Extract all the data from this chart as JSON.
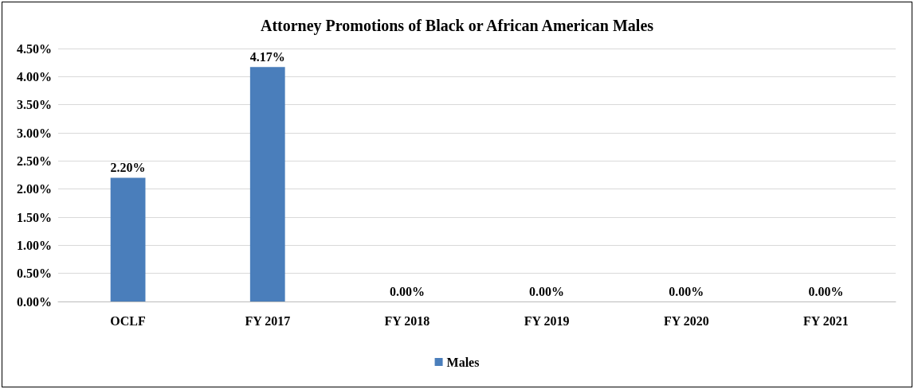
{
  "chart_data": {
    "type": "bar",
    "title": "Attorney Promotions of Black or African American Males",
    "categories": [
      "OCLF",
      "FY 2017",
      "FY 2018",
      "FY 2019",
      "FY 2020",
      "FY 2021"
    ],
    "series": [
      {
        "name": "Males",
        "color": "#4a7ebb",
        "values": [
          2.2,
          4.17,
          0,
          0,
          0,
          0
        ],
        "value_labels": [
          "2.20%",
          "4.17%",
          "0.00%",
          "0.00%",
          "0.00%",
          "0.00%"
        ]
      }
    ],
    "ylim": [
      0,
      4.5
    ],
    "yticks": [
      {
        "value": 0,
        "label": "0.00%"
      },
      {
        "value": 0.5,
        "label": "0.50%"
      },
      {
        "value": 1,
        "label": "1.00%"
      },
      {
        "value": 1.5,
        "label": "1.50%"
      },
      {
        "value": 2,
        "label": "2.00%"
      },
      {
        "value": 2.5,
        "label": "2.50%"
      },
      {
        "value": 3,
        "label": "3.00%"
      },
      {
        "value": 3.5,
        "label": "3.50%"
      },
      {
        "value": 4,
        "label": "4.00%"
      },
      {
        "value": 4.5,
        "label": "4.50%"
      }
    ],
    "grid": "y",
    "legend": "bottom"
  }
}
